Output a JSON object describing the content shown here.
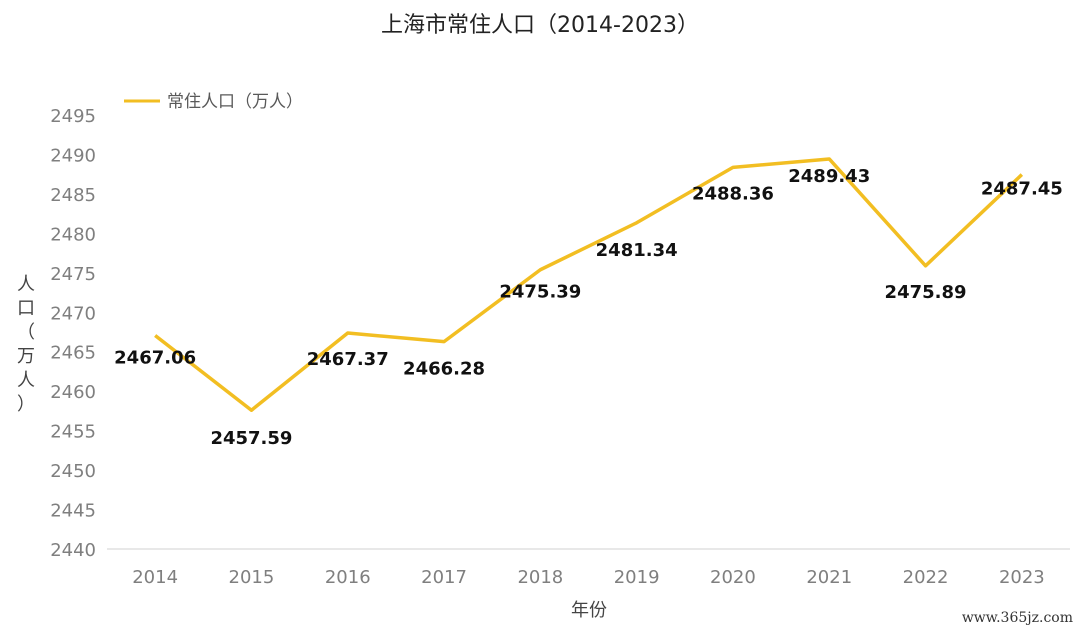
{
  "chart_data": {
    "type": "line",
    "title": "上海市常住人口（2014-2023）",
    "xlabel": "年份",
    "ylabel": "人口（万人）",
    "categories": [
      "2014",
      "2015",
      "2016",
      "2017",
      "2018",
      "2019",
      "2020",
      "2021",
      "2022",
      "2023"
    ],
    "series": [
      {
        "name": "常住人口（万人）",
        "values": [
          2467.06,
          2457.59,
          2467.37,
          2466.28,
          2475.39,
          2481.34,
          2488.36,
          2489.43,
          2475.89,
          2487.45
        ],
        "color": "#F2BE22"
      }
    ],
    "data_labels": [
      "2467.06",
      "2457.59",
      "2467.37",
      "2466.28",
      "2475.39",
      "2481.34",
      "2488.36",
      "2489.43",
      "2475.89",
      "2487.45"
    ],
    "ylim": [
      2440,
      2495
    ],
    "yticks": [
      2440,
      2445,
      2450,
      2455,
      2460,
      2465,
      2470,
      2475,
      2480,
      2485,
      2490,
      2495
    ],
    "ytick_labels": [
      "2440",
      "2445",
      "2450",
      "2455",
      "2460",
      "2465",
      "2470",
      "2475",
      "2480",
      "2485",
      "2490",
      "2495"
    ],
    "drop_line_color": "#4F7FC0",
    "grid": false,
    "legend": "top-left"
  },
  "watermark": "www.365jz.com"
}
